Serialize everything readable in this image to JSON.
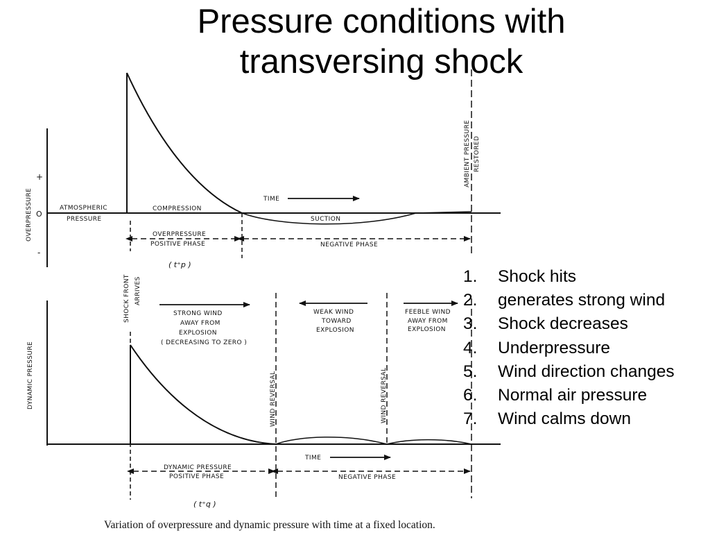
{
  "title": {
    "line1": "Pressure conditions with",
    "line2": "transversing shock"
  },
  "steps": [
    {
      "num": "1.",
      "text": "Shock hits"
    },
    {
      "num": "2.",
      "text": "generates strong wind"
    },
    {
      "num": "3.",
      "text": "Shock decreases"
    },
    {
      "num": "4.",
      "text": "Underpressure"
    },
    {
      "num": "5.",
      "text": "Wind direction changes"
    },
    {
      "num": "6.",
      "text": "Normal air pressure"
    },
    {
      "num": "7.",
      "text": "Wind calms down"
    }
  ],
  "diagram": {
    "upper": {
      "axis_label": "OVERPRESSURE",
      "tick_plus": "+",
      "tick_zero": "O",
      "tick_minus": "-",
      "atmospheric_1": "ATMOSPHERIC",
      "atmospheric_2": "PRESSURE",
      "compression": "COMPRESSION",
      "time": "TIME",
      "suction": "SUCTION",
      "positive_phase_1": "OVERPRESSURE",
      "positive_phase_2": "POSITIVE PHASE",
      "negative_phase": "NEGATIVE PHASE",
      "duration_symbol": "( t⁺p )",
      "ambient_1": "AMBIENT PRESSURE",
      "ambient_2": "RESTORED"
    },
    "shock_front_1": "SHOCK FRONT",
    "shock_front_2": "ARRIVES",
    "lower": {
      "axis_label": "DYNAMIC PRESSURE",
      "strong_wind": [
        "STRONG WIND",
        "AWAY FROM",
        "EXPLOSION",
        "( DECREASING TO ZERO )"
      ],
      "weak_wind": [
        "WEAK WIND",
        "TOWARD",
        "EXPLOSION"
      ],
      "feeble_wind": [
        "FEEBLE WIND",
        "AWAY FROM",
        "EXPLOSION"
      ],
      "wind_reversal": "WIND REVERSAL",
      "time": "TIME",
      "positive_phase_1": "DYNAMIC PRESSURE",
      "positive_phase_2": "POSITIVE PHASE",
      "negative_phase": "NEGATIVE PHASE",
      "duration_symbol": "( t⁺q )"
    },
    "caption": "Variation of overpressure and dynamic pressure with time at a fixed location."
  }
}
